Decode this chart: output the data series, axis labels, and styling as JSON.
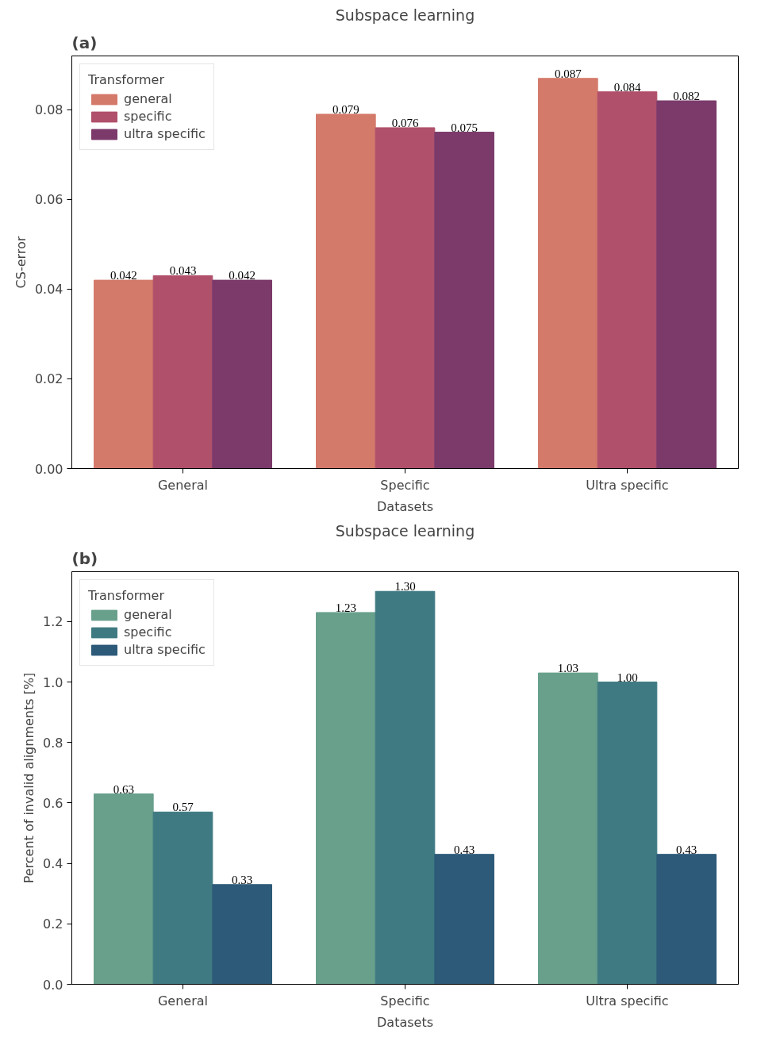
{
  "chart_data": [
    {
      "type": "bar",
      "title": "Subspace learning",
      "xlabel": "Datasets",
      "ylabel": "CS-error",
      "legend_title": "Transformer",
      "annotations": [
        "(a)"
      ],
      "categories": [
        "General",
        "Specific",
        "Ultra specific"
      ],
      "series": [
        {
          "name": "general",
          "color": "#d47a6b",
          "values": [
            0.042,
            0.079,
            0.087
          ],
          "value_labels": [
            "0.042",
            "0.079",
            "0.087"
          ]
        },
        {
          "name": "specific",
          "color": "#b0506b",
          "values": [
            0.043,
            0.076,
            0.084
          ],
          "value_labels": [
            "0.043",
            "0.076",
            "0.084"
          ]
        },
        {
          "name": "ultra specific",
          "color": "#7b3a6a",
          "values": [
            0.042,
            0.075,
            0.082
          ],
          "value_labels": [
            "0.042",
            "0.075",
            "0.082"
          ]
        }
      ],
      "ylim": [
        0,
        0.092
      ],
      "yticks": [
        "0.00",
        "0.02",
        "0.04",
        "0.06",
        "0.08"
      ],
      "grid": false,
      "legend": "top left"
    },
    {
      "type": "bar",
      "title": "Subspace learning",
      "xlabel": "Datasets",
      "ylabel": "Percent of invalid alignments [%]",
      "legend_title": "Transformer",
      "annotations": [
        "(b)"
      ],
      "categories": [
        "General",
        "Specific",
        "Ultra specific"
      ],
      "series": [
        {
          "name": "general",
          "color": "#68a08c",
          "values": [
            0.63,
            1.23,
            1.03
          ],
          "value_labels": [
            "0.63",
            "1.23",
            "1.03"
          ]
        },
        {
          "name": "specific",
          "color": "#3f7a82",
          "values": [
            0.57,
            1.3,
            1.0
          ],
          "value_labels": [
            "0.57",
            "1.30",
            "1.00"
          ]
        },
        {
          "name": "ultra specific",
          "color": "#2c5a78",
          "values": [
            0.33,
            0.43,
            0.43
          ],
          "value_labels": [
            "0.33",
            "0.43",
            "0.43"
          ]
        }
      ],
      "ylim": [
        0,
        1.365
      ],
      "yticks": [
        "0.0",
        "0.2",
        "0.4",
        "0.6",
        "0.8",
        "1.0",
        "1.2"
      ],
      "grid": false,
      "legend": "top left"
    }
  ]
}
